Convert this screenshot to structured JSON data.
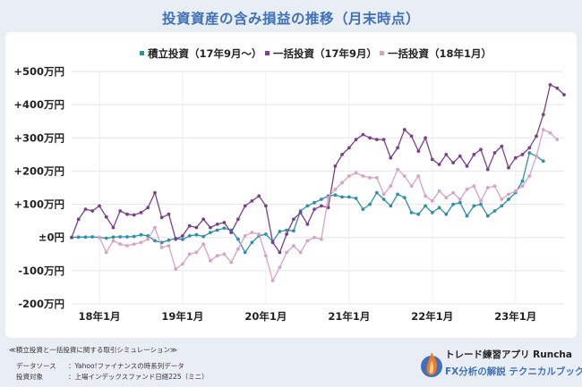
{
  "header": {
    "title": "投資資産の含み損益の推移（月末時点）"
  },
  "chart_data": {
    "type": "line",
    "title": "投資資産の含み損益の推移（月末時点）",
    "x_tick_labels": [
      "18年1月",
      "19年1月",
      "20年1月",
      "21年1月",
      "22年1月",
      "23年1月"
    ],
    "y_tick_labels": [
      "+500万円",
      "+400万円",
      "+300万円",
      "+200万円",
      "+100万円",
      "±0円",
      "-100万円",
      "-200万円"
    ],
    "y_ticks": [
      500,
      400,
      300,
      200,
      100,
      0,
      -100,
      -200
    ],
    "ylim": [
      -200,
      500
    ],
    "y_unit": "万円",
    "x_start": "2017-09",
    "legend_position": "top",
    "series": [
      {
        "name": "積立投資（17年9月～）",
        "color": "#2e8fa6",
        "start_index": 0,
        "values": [
          0,
          1,
          1,
          2,
          0,
          -2,
          1,
          2,
          2,
          3,
          8,
          5,
          -10,
          -15,
          -8,
          -3,
          -6,
          5,
          8,
          3,
          15,
          22,
          28,
          22,
          -5,
          -45,
          -15,
          5,
          10,
          -12,
          18,
          22,
          20,
          80,
          95,
          105,
          115,
          125,
          128,
          122,
          122,
          118,
          85,
          100,
          135,
          115,
          95,
          130,
          120,
          75,
          70,
          95,
          75,
          90,
          70,
          100,
          105,
          65,
          95,
          100,
          65,
          80,
          95,
          115,
          135,
          170,
          255,
          245,
          230
        ]
      },
      {
        "name": "一括投資（17年9月）",
        "color": "#7b3f8c",
        "start_index": 0,
        "values": [
          0,
          55,
          85,
          80,
          95,
          62,
          30,
          80,
          70,
          68,
          75,
          90,
          135,
          60,
          70,
          -5,
          5,
          35,
          30,
          55,
          30,
          40,
          45,
          15,
          55,
          95,
          110,
          125,
          95,
          -15,
          -45,
          10,
          55,
          75,
          40,
          85,
          95,
          90,
          215,
          250,
          270,
          295,
          310,
          300,
          295,
          295,
          240,
          270,
          325,
          305,
          260,
          300,
          235,
          220,
          250,
          225,
          245,
          215,
          250,
          265,
          205,
          255,
          275,
          210,
          240,
          250,
          270,
          305,
          370,
          460,
          450,
          430
        ]
      },
      {
        "name": "一括投資（18年1月）",
        "color": "#d7a3c4",
        "start_index": 4,
        "values": [
          0,
          -45,
          -10,
          -20,
          -25,
          -20,
          -15,
          -5,
          30,
          -30,
          -25,
          -95,
          -80,
          -50,
          -45,
          -20,
          -70,
          -55,
          -50,
          -75,
          -35,
          5,
          15,
          10,
          -55,
          -130,
          -90,
          -45,
          -25,
          -45,
          -10,
          0,
          -5,
          120,
          145,
          165,
          185,
          195,
          185,
          180,
          180,
          130,
          155,
          205,
          185,
          155,
          185,
          125,
          110,
          140,
          120,
          135,
          115,
          145,
          155,
          110,
          150,
          155,
          115,
          130,
          140,
          155,
          185,
          245,
          325,
          315,
          295
        ]
      }
    ]
  },
  "footer": {
    "title": "≪積立投資と一括投資に関する取引シミュレーション≫",
    "source_label": "データソース",
    "source_value": "：Yahoo!ファイナンスの時系列データ",
    "target_label": "投資対象",
    "target_value": "：上場インデックスファンド日経225（ミニ）"
  },
  "brand": {
    "name": "トレード練習アプリ Runcha",
    "subtitle": "FX分析の解説 テクニカルブック",
    "logo_icon": "flame-logo-icon"
  }
}
